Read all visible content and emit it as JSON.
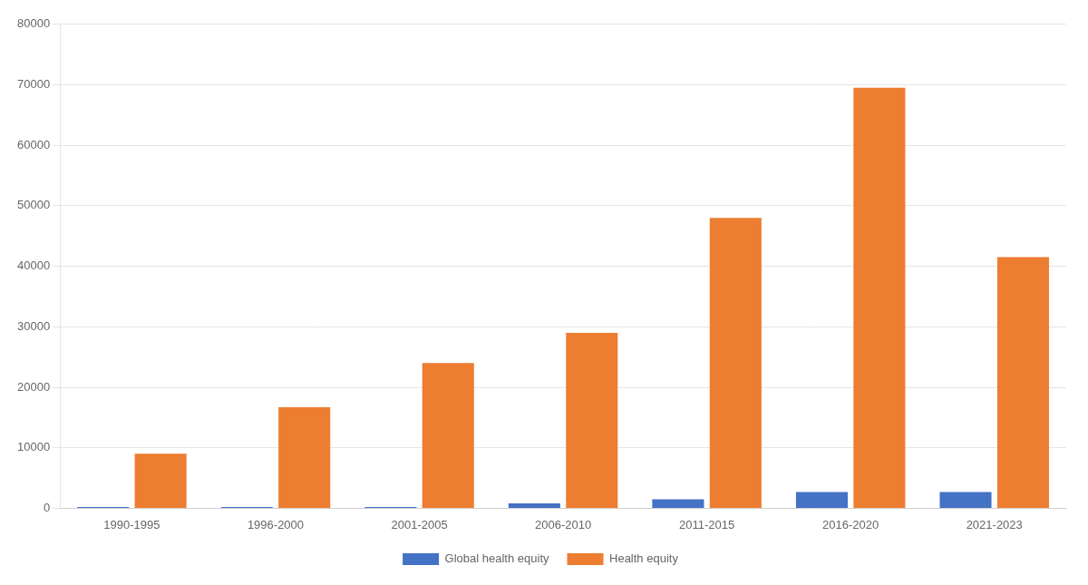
{
  "chart_data": {
    "type": "bar",
    "categories": [
      "1990-1995",
      "1996-2000",
      "2001-2005",
      "2006-2010",
      "2011-2015",
      "2016-2020",
      "2021-2023"
    ],
    "series": [
      {
        "name": "Global health equity",
        "color": "#4472C4",
        "values": [
          200,
          200,
          200,
          800,
          1500,
          2700,
          2700
        ]
      },
      {
        "name": "Health equity",
        "color": "#ED7D31",
        "values": [
          9000,
          16700,
          24000,
          29000,
          48000,
          69500,
          41500
        ]
      }
    ],
    "ylim": [
      0,
      80000
    ],
    "yticks": [
      0,
      10000,
      20000,
      30000,
      40000,
      50000,
      60000,
      70000,
      80000
    ],
    "grid": true,
    "legend": "bottom"
  }
}
